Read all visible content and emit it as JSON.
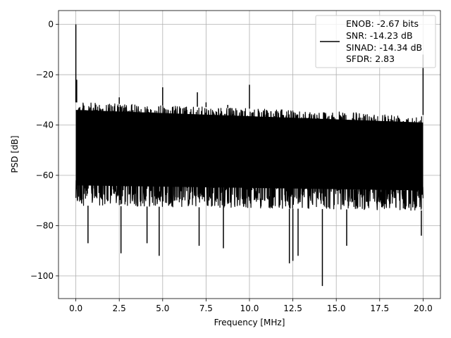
{
  "chart_data": {
    "type": "line",
    "xlabel": "Frequency [MHz]",
    "ylabel": "PSD [dB]",
    "xlim": [
      -1.0,
      21.0
    ],
    "ylim": [
      -109,
      5.5
    ],
    "xticks": [
      0.0,
      2.5,
      5.0,
      7.5,
      10.0,
      12.5,
      15.0,
      17.5,
      20.0
    ],
    "xtick_labels": [
      "0.0",
      "2.5",
      "5.0",
      "7.5",
      "10.0",
      "12.5",
      "15.0",
      "17.5",
      "20.0"
    ],
    "yticks": [
      0,
      -20,
      -40,
      -60,
      -80,
      -100
    ],
    "ytick_labels": [
      "0",
      "−20",
      "−40",
      "−60",
      "−80",
      "−100"
    ],
    "grid": true,
    "legend_position": "top-right",
    "series": [
      {
        "legend": [
          "ENOB: -2.67 bits",
          "SNR: -14.23 dB",
          "SINAD: -14.34 dB",
          "SFDR: 2.83"
        ],
        "color": "#000000",
        "noise_band": {
          "x": [
            0.0,
            20.0
          ],
          "upper_db": [
            -31,
            -36
          ],
          "lower_db": [
            -72,
            -74
          ]
        },
        "spikes": [
          {
            "x": 0.0,
            "y": 0
          },
          {
            "x": 0.05,
            "y": -22
          },
          {
            "x": 2.5,
            "y": -29
          },
          {
            "x": 5.0,
            "y": -25
          },
          {
            "x": 7.0,
            "y": -27
          },
          {
            "x": 7.5,
            "y": -31
          },
          {
            "x": 8.75,
            "y": -32
          },
          {
            "x": 10.0,
            "y": -24
          },
          {
            "x": 20.0,
            "y": -12
          }
        ],
        "dips": [
          {
            "x": 0.7,
            "y": -87
          },
          {
            "x": 2.6,
            "y": -91
          },
          {
            "x": 4.1,
            "y": -87
          },
          {
            "x": 4.8,
            "y": -92
          },
          {
            "x": 7.1,
            "y": -88
          },
          {
            "x": 8.5,
            "y": -89
          },
          {
            "x": 12.3,
            "y": -95
          },
          {
            "x": 12.5,
            "y": -94
          },
          {
            "x": 12.8,
            "y": -92
          },
          {
            "x": 14.2,
            "y": -104
          },
          {
            "x": 15.6,
            "y": -88
          },
          {
            "x": 19.9,
            "y": -84
          }
        ]
      }
    ]
  }
}
